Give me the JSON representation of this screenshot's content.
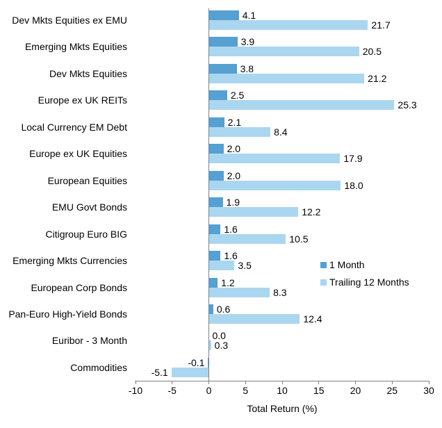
{
  "chart_data": {
    "type": "bar",
    "orientation": "horizontal",
    "title": "",
    "xlabel": "Total Return (%)",
    "ylabel": "",
    "xlim": [
      -10,
      30
    ],
    "x_ticks": [
      -10,
      -5,
      0,
      5,
      10,
      15,
      20,
      25,
      30
    ],
    "grid": false,
    "legend_position": "center-right",
    "value_labels": "outside-end, one decimal place",
    "axis_color": "#808080",
    "text_color": "#000000",
    "categories": [
      "Dev Mkts Equities ex EMU",
      "Emerging Mkts Equities",
      "Dev Mkts Equities",
      "Europe ex UK REITs",
      "Local Currency EM Debt",
      "Europe ex UK Equities",
      "European Equities",
      "EMU Govt Bonds",
      "Citigroup Euro BIG",
      "Emerging Mkts Currencies",
      "European Corp Bonds",
      "Pan-Euro High-Yield Bonds",
      "Euribor - 3 Month",
      "Commodities"
    ],
    "series": [
      {
        "name": "1 Month",
        "color": "#56A0D3",
        "values": [
          4.1,
          3.9,
          3.8,
          2.5,
          2.1,
          2.0,
          2.0,
          1.9,
          1.6,
          1.6,
          1.2,
          0.6,
          0.0,
          -0.1
        ]
      },
      {
        "name": "Trailing 12 Months",
        "color": "#ABD6F0",
        "values": [
          21.7,
          20.5,
          21.2,
          25.3,
          8.4,
          17.9,
          18.0,
          12.2,
          10.5,
          3.5,
          8.3,
          12.4,
          0.3,
          -5.1
        ]
      }
    ]
  }
}
